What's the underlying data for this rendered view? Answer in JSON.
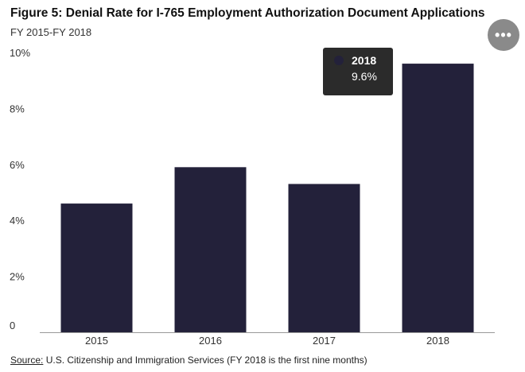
{
  "header": {
    "menu_icon_glyph": "•••"
  },
  "footer": {
    "source_label": "Source:",
    "source_text": " U.S. Citizenship and Immigration Services (FY 2018 is the first nine months)"
  },
  "tooltip": {
    "category": "2018",
    "value_text": "9.6%",
    "color": "#23213a"
  },
  "chart_data": {
    "type": "bar",
    "title": "Figure 5: Denial Rate for I-765 Employment Authorization Document Applications",
    "subtitle": "FY 2015-FY 2018",
    "categories": [
      "2015",
      "2016",
      "2017",
      "2018"
    ],
    "values": [
      4.6,
      5.9,
      5.3,
      9.6
    ],
    "ylim": [
      0,
      10
    ],
    "yticks": [
      0,
      2,
      4,
      6,
      8,
      10
    ],
    "ytick_labels": [
      "0",
      "2%",
      "4%",
      "6%",
      "8%",
      "10%"
    ],
    "xlabel": "",
    "ylabel": "",
    "bar_color": "#23213a",
    "grid": false
  }
}
